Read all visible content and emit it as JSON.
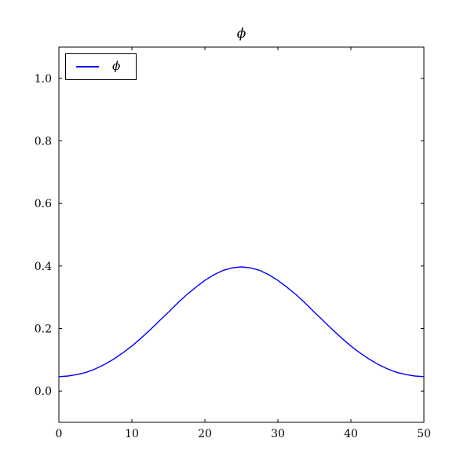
{
  "figure": {
    "title": "ϕ"
  },
  "legend": {
    "position": "upper left",
    "entries": [
      {
        "label": "ϕ",
        "color": "#0000ff",
        "style": "solid-line"
      }
    ]
  },
  "chart_data": {
    "type": "line",
    "title": "ϕ",
    "xlabel": "",
    "ylabel": "",
    "xlim": [
      0,
      50
    ],
    "ylim": [
      -0.1,
      1.1
    ],
    "grid": false,
    "legend_position": "upper left",
    "xticks": {
      "values": [
        0,
        10,
        20,
        30,
        40,
        50
      ],
      "labels": [
        "0",
        "10",
        "20",
        "30",
        "40",
        "50"
      ]
    },
    "yticks": {
      "values": [
        0.0,
        0.2,
        0.4,
        0.6,
        0.8,
        1.0
      ],
      "labels": [
        "0.0",
        "0.2",
        "0.4",
        "0.6",
        "0.8",
        "1.0"
      ]
    },
    "peak": {
      "x": 25,
      "y": 0.397
    },
    "colors": {
      "line": "#0000ff",
      "axes": "#000000",
      "background": "#ffffff"
    },
    "series": [
      {
        "name": "ϕ",
        "color": "#0000ff",
        "x": [
          0,
          1.25,
          2.5,
          3.75,
          5,
          6.25,
          7.5,
          8.75,
          10,
          11.25,
          12.5,
          13.75,
          15,
          16.25,
          17.5,
          18.75,
          20,
          21.25,
          22.5,
          23.75,
          25,
          26.25,
          27.5,
          28.75,
          30,
          31.25,
          32.5,
          33.75,
          35,
          36.25,
          37.5,
          38.75,
          40,
          41.25,
          42.5,
          43.75,
          45,
          46.25,
          47.5,
          48.75,
          50
        ],
        "y": [
          0.046,
          0.048,
          0.053,
          0.06,
          0.071,
          0.085,
          0.102,
          0.122,
          0.144,
          0.169,
          0.196,
          0.224,
          0.252,
          0.281,
          0.308,
          0.332,
          0.354,
          0.372,
          0.386,
          0.394,
          0.397,
          0.394,
          0.386,
          0.372,
          0.354,
          0.332,
          0.308,
          0.281,
          0.252,
          0.224,
          0.196,
          0.169,
          0.144,
          0.122,
          0.102,
          0.085,
          0.071,
          0.06,
          0.053,
          0.048,
          0.046
        ]
      }
    ]
  }
}
